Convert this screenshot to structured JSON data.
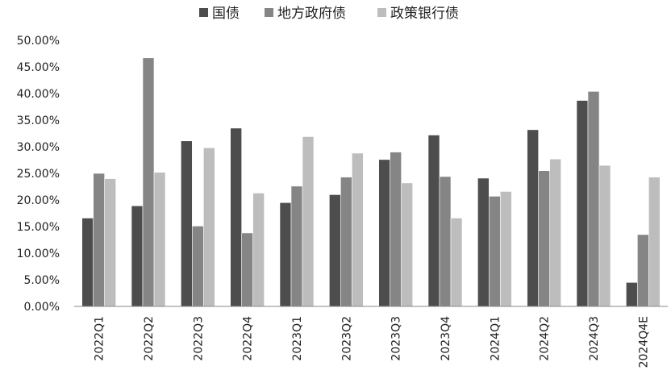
{
  "chart_data": {
    "type": "bar",
    "title": "",
    "xlabel": "",
    "ylabel": "",
    "categories": [
      "2022Q1",
      "2022Q2",
      "2022Q3",
      "2022Q4",
      "2023Q1",
      "2023Q2",
      "2023Q3",
      "2023Q4",
      "2024Q1",
      "2024Q2",
      "2024Q3",
      "2024Q4E"
    ],
    "series": [
      {
        "name": "国债",
        "color": "#4d4d4d",
        "values": [
          16.6,
          18.9,
          31.1,
          33.5,
          19.5,
          21.0,
          27.6,
          32.2,
          24.1,
          33.2,
          38.7,
          4.5
        ]
      },
      {
        "name": "地方政府债",
        "color": "#858585",
        "values": [
          25.0,
          46.7,
          15.1,
          13.8,
          22.6,
          24.3,
          29.0,
          24.4,
          20.7,
          25.5,
          40.4,
          13.5
        ]
      },
      {
        "name": "政策银行债",
        "color": "#bdbdbd",
        "values": [
          24.0,
          25.2,
          29.8,
          21.3,
          31.9,
          28.8,
          23.2,
          16.6,
          21.6,
          27.7,
          26.5,
          24.3
        ]
      }
    ],
    "ylim": [
      0,
      50
    ],
    "y_ticks": [
      "0.00%",
      "5.00%",
      "10.00%",
      "15.00%",
      "20.00%",
      "25.00%",
      "30.00%",
      "35.00%",
      "40.00%",
      "45.00%",
      "50.00%"
    ],
    "grid": false,
    "legend_position": "top-center"
  }
}
